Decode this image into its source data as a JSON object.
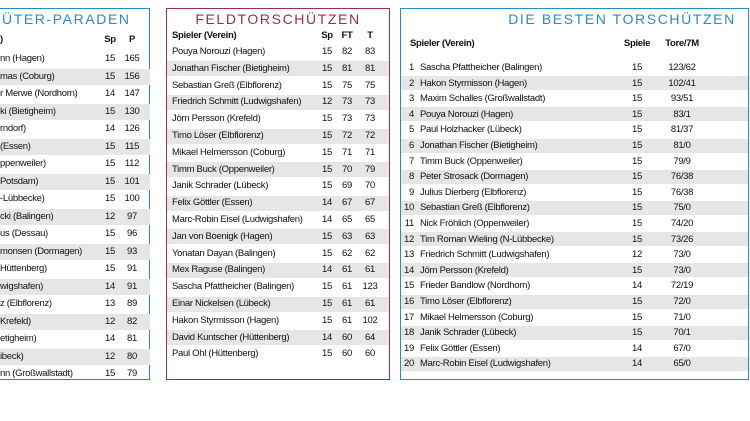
{
  "tables": [
    {
      "title": "ÜTER-PARADEN",
      "columns": [
        ")",
        "Sp",
        "P"
      ],
      "rows": [
        [
          "nn (Hagen)",
          15,
          165
        ],
        [
          "mas (Coburg)",
          15,
          156
        ],
        [
          "r Merwe (Nordhorn)",
          14,
          147
        ],
        [
          "ki (Bietigheim)",
          15,
          130
        ],
        [
          "rndorf)",
          14,
          126
        ],
        [
          "(Essen)",
          15,
          115
        ],
        [
          "ppenweiler)",
          15,
          112
        ],
        [
          "Potsdam)",
          15,
          101
        ],
        [
          "-Lübbecke)",
          15,
          100
        ],
        [
          "cki (Balingen)",
          12,
          97
        ],
        [
          "us (Dessau)",
          15,
          96
        ],
        [
          "monsen (Dormagen)",
          15,
          93
        ],
        [
          "Hüttenberg)",
          15,
          91
        ],
        [
          "wigshafen)",
          14,
          91
        ],
        [
          "z (Elbflorenz)",
          13,
          89
        ],
        [
          "Krefeld)",
          12,
          82
        ],
        [
          "etigheim)",
          14,
          81
        ],
        [
          "ibeck)",
          12,
          80
        ],
        [
          "nn (Großwallstadt)",
          15,
          79
        ]
      ]
    },
    {
      "title": "FELDTORSCHÜTZEN",
      "columns": [
        "Spieler (Verein)",
        "Sp",
        "FT",
        "T"
      ],
      "rows": [
        [
          "Pouya Norouzi (Hagen)",
          15,
          82,
          83
        ],
        [
          "Jonathan Fischer (Bietigheim)",
          15,
          81,
          81
        ],
        [
          "Sebastian Greß (Elbflorenz)",
          15,
          75,
          75
        ],
        [
          "Friedrich Schmitt (Ludwigshafen)",
          12,
          73,
          73
        ],
        [
          "Jörn Persson (Krefeld)",
          15,
          73,
          73
        ],
        [
          "Timo Löser (Elbflorenz)",
          15,
          72,
          72
        ],
        [
          "Mikael Helmersson (Coburg)",
          15,
          71,
          71
        ],
        [
          "Timm Buck (Oppenweiler)",
          15,
          70,
          79
        ],
        [
          "Janik Schrader (Lübeck)",
          15,
          69,
          70
        ],
        [
          "Felix Göttler (Essen)",
          14,
          67,
          67
        ],
        [
          "Marc-Robin Eisel (Ludwigshafen)",
          14,
          65,
          65
        ],
        [
          "Jan von Boenigk (Hagen)",
          15,
          63,
          63
        ],
        [
          "Yonatan Dayan (Balingen)",
          15,
          62,
          62
        ],
        [
          "Mex Raguse (Balingen)",
          14,
          61,
          61
        ],
        [
          "Sascha Pfattheicher (Balingen)",
          15,
          61,
          123
        ],
        [
          "Einar Nickelsen (Lübeck)",
          15,
          61,
          61
        ],
        [
          "Hakon Styrmisson (Hagen)",
          15,
          61,
          102
        ],
        [
          "David Kuntscher (Hüttenberg)",
          14,
          60,
          64
        ],
        [
          "Paul Ohl (Hüttenberg)",
          15,
          60,
          60
        ]
      ]
    },
    {
      "title": "DIE BESTEN TORSCHÜTZEN",
      "columns": [
        "Spieler (Verein)",
        "Spiele",
        "Tore/7M"
      ],
      "rows": [
        [
          1,
          "Sascha Pfattheicher (Balingen)",
          15,
          "123/62"
        ],
        [
          2,
          "Hakon Styrmisson (Hagen)",
          15,
          "102/41"
        ],
        [
          3,
          "Maxim Schalles (Großwallstadt)",
          15,
          "93/51"
        ],
        [
          4,
          "Pouya Norouzi (Hagen)",
          15,
          "83/1"
        ],
        [
          5,
          "Paul Holzhacker (Lübeck)",
          15,
          "81/37"
        ],
        [
          6,
          "Jonathan Fischer (Bietigheim)",
          15,
          "81/0"
        ],
        [
          7,
          "Timm Buck (Oppenweiler)",
          15,
          "79/9"
        ],
        [
          8,
          "Peter Strosack (Dormagen)",
          15,
          "76/38"
        ],
        [
          9,
          "Julius Dierberg (Elbflorenz)",
          15,
          "76/38"
        ],
        [
          10,
          "Sebastian Greß (Elbflorenz)",
          15,
          "75/0"
        ],
        [
          11,
          "Nick Fröhlich (Oppenweiler)",
          15,
          "74/20"
        ],
        [
          12,
          "Tim Roman Wieling (N-Lübbecke)",
          15,
          "73/26"
        ],
        [
          13,
          "Friedrich Schmitt (Ludwigshafen)",
          12,
          "73/0"
        ],
        [
          14,
          "Jörn Persson (Krefeld)",
          15,
          "73/0"
        ],
        [
          15,
          "Frieder Bandlow (Nordhorn)",
          14,
          "72/19"
        ],
        [
          16,
          "Timo Löser (Elbflorenz)",
          15,
          "72/0"
        ],
        [
          17,
          "Mikael Helmersson (Coburg)",
          15,
          "71/0"
        ],
        [
          18,
          "Janik Schrader (Lübeck)",
          15,
          "70/1"
        ],
        [
          19,
          "Felix Göttler (Essen)",
          14,
          "67/0"
        ],
        [
          20,
          "Marc-Robin Eisel (Ludwigshafen)",
          14,
          "65/0"
        ]
      ]
    }
  ]
}
